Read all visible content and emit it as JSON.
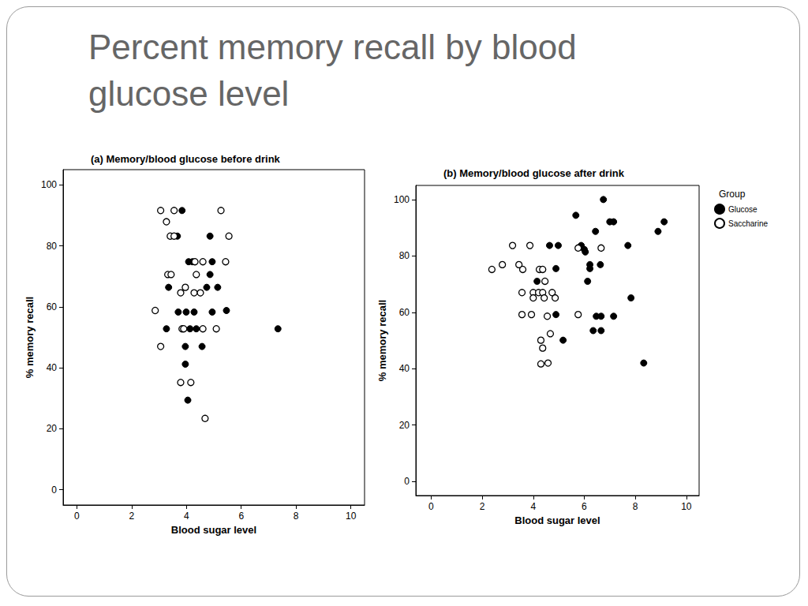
{
  "slide_title": "Percent memory recall by blood glucose level",
  "chart_data": [
    {
      "type": "scatter",
      "title": "(a) Memory/blood glucose before drink",
      "x_label": "Blood sugar level",
      "y_label": "% memory recall",
      "xlim": [
        -0.5,
        10.5
      ],
      "ylim": [
        -5,
        105
      ],
      "xticks": [
        0,
        2,
        4,
        6,
        8,
        10
      ],
      "yticks": [
        0,
        20,
        40,
        60,
        80,
        100
      ],
      "grid": false,
      "series": [
        {
          "name": "Glucose",
          "color": "#000000",
          "marker": "filled",
          "x": [
            3.84,
            3.67,
            4.86,
            4.08,
            4.22,
            4.94,
            4.86,
            3.35,
            4.74,
            5.14,
            3.7,
            3.99,
            4.28,
            4.94,
            5.46,
            3.27,
            4.13,
            4.36,
            7.34,
            3.96,
            4.57,
            3.96,
            4.05
          ],
          "values": [
            91.6,
            83.2,
            83.2,
            74.8,
            74.8,
            74.8,
            70.6,
            66.4,
            66.4,
            66.4,
            58.3,
            58.3,
            58.3,
            58.3,
            58.8,
            52.8,
            52.8,
            52.8,
            52.8,
            47.0,
            47.0,
            41.2,
            29.4
          ]
        },
        {
          "name": "Saccharine",
          "color": "#000000",
          "marker": "hollow",
          "x": [
            3.06,
            3.55,
            5.26,
            3.27,
            3.41,
            3.55,
            5.55,
            4.31,
            4.6,
            5.43,
            3.32,
            3.44,
            4.36,
            3.79,
            3.96,
            4.28,
            4.51,
            2.86,
            3.84,
            3.9,
            4.6,
            5.09,
            3.06,
            3.79,
            4.16,
            4.68
          ],
          "values": [
            91.6,
            91.6,
            91.6,
            87.9,
            83.2,
            83.2,
            83.2,
            74.8,
            74.8,
            74.8,
            70.6,
            70.6,
            70.6,
            64.6,
            66.4,
            64.6,
            64.6,
            58.8,
            52.8,
            52.8,
            52.8,
            52.8,
            47.0,
            35.2,
            35.2,
            23.4
          ]
        }
      ]
    },
    {
      "type": "scatter",
      "title": "(b) Memory/blood glucose after drink",
      "x_label": "Blood sugar level",
      "y_label": "% memory recall",
      "xlim": [
        -0.6,
        10.5
      ],
      "ylim": [
        -5,
        105
      ],
      "xticks": [
        0,
        2,
        4,
        6,
        8,
        10
      ],
      "yticks": [
        0,
        20,
        40,
        60,
        80,
        100
      ],
      "grid": false,
      "legend": "right",
      "legend_title": "Group",
      "series": [
        {
          "name": "Glucose",
          "color": "#000000",
          "marker": "filled",
          "x": [
            6.75,
            5.67,
            7.0,
            7.15,
            9.13,
            8.89,
            6.44,
            4.64,
            4.98,
            5.88,
            6.0,
            6.04,
            7.71,
            6.22,
            6.22,
            6.63,
            4.89,
            4.15,
            6.13,
            4.89,
            6.47,
            6.66,
            7.15,
            7.83,
            6.35,
            6.66,
            5.17,
            8.33
          ],
          "values": [
            100.0,
            94.4,
            92.1,
            92.1,
            92.1,
            88.7,
            88.7,
            83.7,
            83.7,
            83.7,
            82.3,
            81.4,
            83.7,
            76.9,
            75.5,
            76.9,
            75.5,
            71.0,
            71.0,
            59.2,
            58.6,
            58.6,
            58.6,
            65.1,
            53.5,
            53.5,
            50.1,
            42.0
          ]
        },
        {
          "name": "Saccharine",
          "color": "#000000",
          "marker": "hollow",
          "x": [
            2.38,
            2.79,
            3.19,
            3.87,
            3.44,
            3.59,
            4.24,
            4.37,
            5.76,
            6.66,
            4.46,
            3.56,
            4.0,
            4.21,
            4.37,
            4.74,
            4.0,
            4.43,
            4.86,
            3.56,
            3.93,
            4.55,
            5.76,
            4.67,
            4.3,
            4.37,
            4.3,
            4.58
          ],
          "values": [
            75.2,
            76.9,
            83.7,
            83.7,
            76.9,
            75.2,
            75.2,
            75.2,
            82.8,
            82.8,
            71.0,
            67.0,
            67.0,
            67.0,
            67.0,
            67.0,
            65.1,
            65.1,
            65.1,
            59.2,
            59.2,
            58.6,
            59.2,
            52.4,
            50.1,
            47.3,
            41.7,
            42.0
          ]
        }
      ]
    }
  ]
}
